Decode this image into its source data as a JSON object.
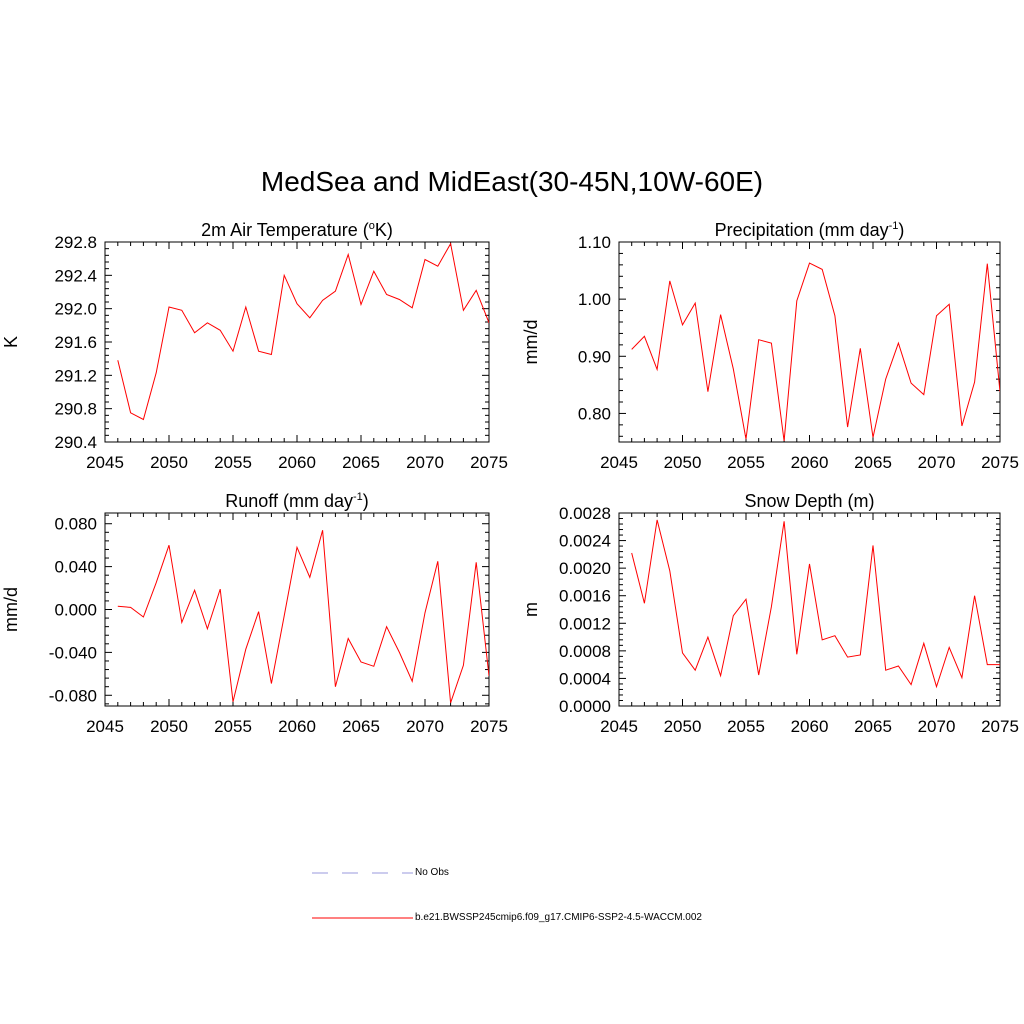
{
  "title": "MedSea and MidEast(30-45N,10W-60E)",
  "colors": {
    "series": "#ff0000",
    "obs": "#9999dd",
    "axis": "#000000"
  },
  "legend": [
    {
      "label": "No Obs",
      "style": "dashed",
      "color": "#9999dd"
    },
    {
      "label": "b.e21.BWSSP245cmip6.f09_g17.CMIP6-SSP2-4.5-WACCM.002",
      "style": "solid",
      "color": "#ff0000"
    }
  ],
  "chart_data": [
    {
      "type": "line",
      "title": "2m Air Temperature (",
      "title_sup": "o",
      "title_post": "K)",
      "ylabel": "K",
      "xlim": [
        2045,
        2075
      ],
      "ylim": [
        290.4,
        292.8
      ],
      "xticks": [
        "2045",
        "2050",
        "2055",
        "2060",
        "2065",
        "2070",
        "2075"
      ],
      "yticks": [
        "290.4",
        "290.8",
        "291.2",
        "291.6",
        "292.0",
        "292.4",
        "292.8"
      ],
      "x": [
        2046,
        2047,
        2048,
        2049,
        2050,
        2051,
        2052,
        2053,
        2054,
        2055,
        2056,
        2057,
        2058,
        2059,
        2060,
        2061,
        2062,
        2063,
        2064,
        2065,
        2066,
        2067,
        2068,
        2069,
        2070,
        2071,
        2072,
        2073,
        2074,
        2075
      ],
      "series": [
        {
          "values": [
            291.38,
            290.75,
            290.67,
            291.23,
            292.02,
            291.98,
            291.71,
            291.83,
            291.74,
            291.49,
            292.02,
            291.49,
            291.45,
            292.4,
            292.06,
            291.89,
            292.1,
            292.21,
            292.65,
            292.05,
            292.45,
            292.17,
            292.11,
            292.01,
            292.59,
            292.51,
            292.78,
            291.98,
            292.22,
            291.83
          ]
        }
      ]
    },
    {
      "type": "line",
      "title": "Precipitation (mm day",
      "title_sup": "-1",
      "title_post": ")",
      "ylabel": "mm/d",
      "xlim": [
        2045,
        2075
      ],
      "ylim": [
        0.75,
        1.1
      ],
      "xticks": [
        "2045",
        "2050",
        "2055",
        "2060",
        "2065",
        "2070",
        "2075"
      ],
      "yticks": [
        "0.80",
        "0.90",
        "1.00",
        "1.10"
      ],
      "x": [
        2046,
        2047,
        2048,
        2049,
        2050,
        2051,
        2052,
        2053,
        2054,
        2055,
        2056,
        2057,
        2058,
        2059,
        2060,
        2061,
        2062,
        2063,
        2064,
        2065,
        2066,
        2067,
        2068,
        2069,
        2070,
        2071,
        2072,
        2073,
        2074,
        2075
      ],
      "series": [
        {
          "values": [
            0.912,
            0.935,
            0.877,
            1.032,
            0.955,
            0.993,
            0.838,
            0.973,
            0.878,
            0.755,
            0.929,
            0.923,
            0.752,
            0.997,
            1.063,
            1.052,
            0.971,
            0.776,
            0.914,
            0.758,
            0.86,
            0.923,
            0.853,
            0.833,
            0.971,
            0.991,
            0.778,
            0.855,
            1.062,
            0.838
          ]
        }
      ]
    },
    {
      "type": "line",
      "title": "Runoff (mm day",
      "title_sup": "-1",
      "title_post": ")",
      "ylabel": "mm/d",
      "xlim": [
        2045,
        2075
      ],
      "ylim": [
        -0.09,
        0.09
      ],
      "xticks": [
        "2045",
        "2050",
        "2055",
        "2060",
        "2065",
        "2070",
        "2075"
      ],
      "yticks": [
        "-0.080",
        "-0.040",
        "0.000",
        "0.040",
        "0.080"
      ],
      "x": [
        2046,
        2047,
        2048,
        2049,
        2050,
        2051,
        2052,
        2053,
        2054,
        2055,
        2056,
        2057,
        2058,
        2059,
        2060,
        2061,
        2062,
        2063,
        2064,
        2065,
        2066,
        2067,
        2068,
        2069,
        2070,
        2071,
        2072,
        2073,
        2074,
        2075
      ],
      "series": [
        {
          "values": [
            0.003,
            0.002,
            -0.007,
            0.025,
            0.06,
            -0.012,
            0.018,
            -0.018,
            0.019,
            -0.086,
            -0.037,
            -0.002,
            -0.069,
            -0.006,
            0.058,
            0.03,
            0.074,
            -0.072,
            -0.027,
            -0.049,
            -0.053,
            -0.016,
            -0.04,
            -0.067,
            -0.003,
            0.045,
            -0.087,
            -0.052,
            0.044,
            -0.062
          ]
        }
      ]
    },
    {
      "type": "line",
      "title": "Snow Depth (m)",
      "title_sup": "",
      "title_post": "",
      "ylabel": "m",
      "xlim": [
        2045,
        2075
      ],
      "ylim": [
        0.0,
        0.0028
      ],
      "xticks": [
        "2045",
        "2050",
        "2055",
        "2060",
        "2065",
        "2070",
        "2075"
      ],
      "yticks": [
        "0.0000",
        "0.0004",
        "0.0008",
        "0.0012",
        "0.0016",
        "0.0020",
        "0.0024",
        "0.0028"
      ],
      "x": [
        2046,
        2047,
        2048,
        2049,
        2050,
        2051,
        2052,
        2053,
        2054,
        2055,
        2056,
        2057,
        2058,
        2059,
        2060,
        2061,
        2062,
        2063,
        2064,
        2065,
        2066,
        2067,
        2068,
        2069,
        2070,
        2071,
        2072,
        2073,
        2074,
        2075
      ],
      "series": [
        {
          "values": [
            0.00222,
            0.00149,
            0.0027,
            0.00196,
            0.00077,
            0.00052,
            0.001,
            0.00044,
            0.00131,
            0.00155,
            0.00045,
            0.00144,
            0.00268,
            0.00075,
            0.00206,
            0.00096,
            0.00102,
            0.00071,
            0.00074,
            0.00233,
            0.00052,
            0.00058,
            0.00031,
            0.00091,
            0.00028,
            0.00085,
            0.00041,
            0.0016,
            0.0006,
            0.0006
          ]
        }
      ]
    }
  ]
}
